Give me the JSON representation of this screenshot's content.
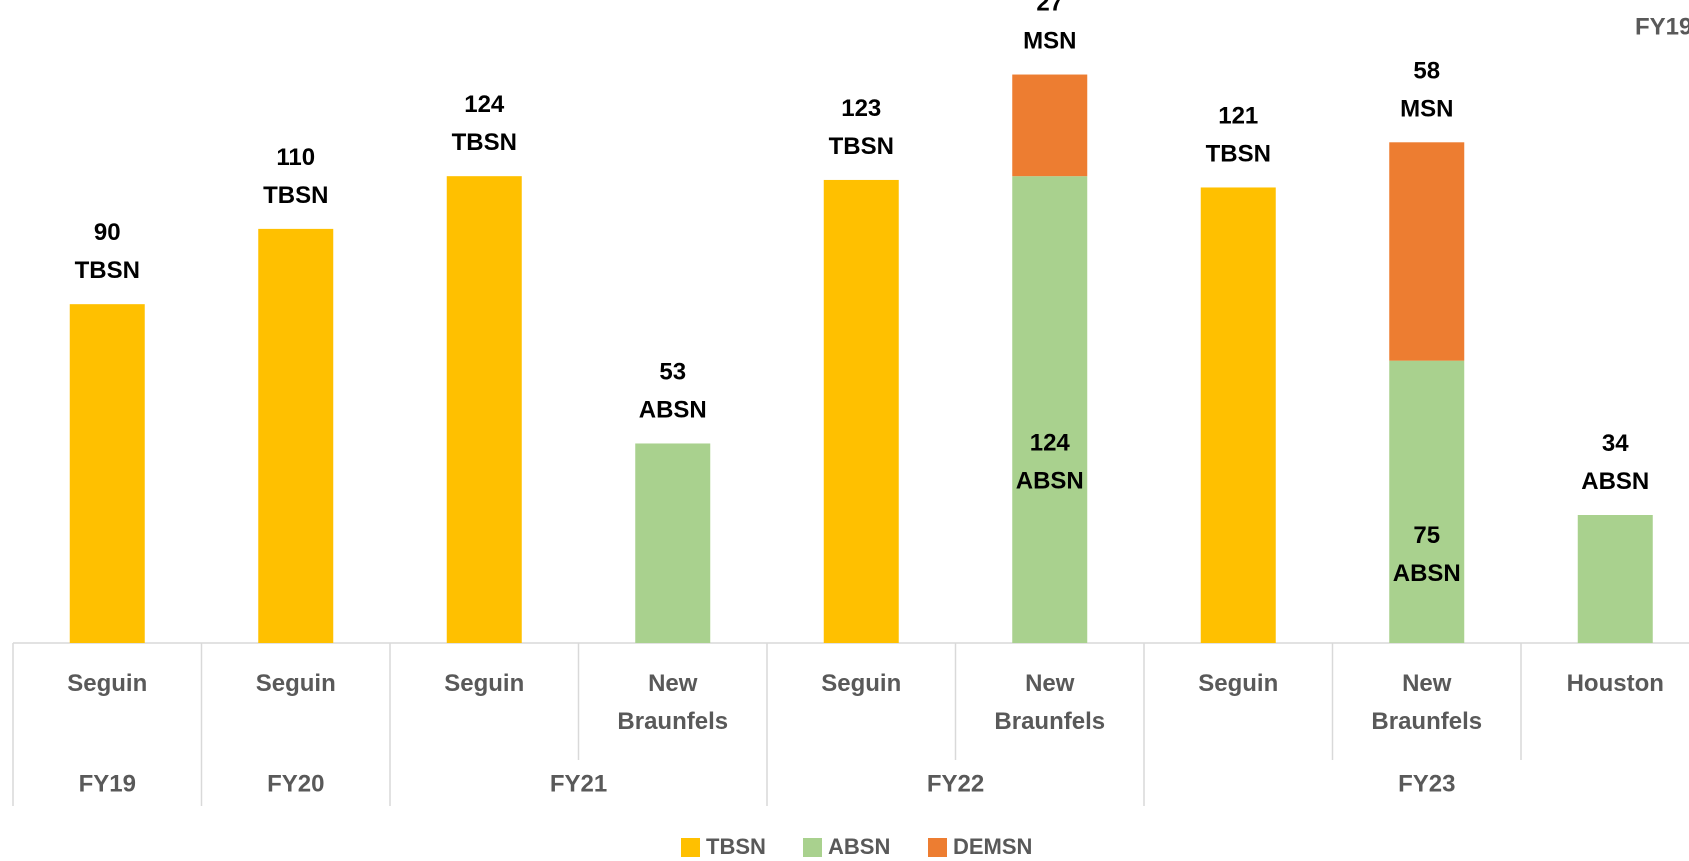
{
  "chart_data": {
    "type": "stacked_bar",
    "annotation": "FY19",
    "groups": [
      {
        "label": "FY19",
        "categories": [
          "Seguin"
        ]
      },
      {
        "label": "FY20",
        "categories": [
          "Seguin"
        ]
      },
      {
        "label": "FY21",
        "categories": [
          "Seguin",
          "New Braunfels"
        ]
      },
      {
        "label": "FY22",
        "categories": [
          "Seguin",
          "New Braunfels"
        ]
      },
      {
        "label": "FY23",
        "categories": [
          "Seguin",
          "New Braunfels",
          "Houston"
        ]
      }
    ],
    "series": [
      {
        "name": "TBSN",
        "color": "#FFC000",
        "values": [
          90,
          110,
          124,
          null,
          123,
          null,
          121,
          null,
          null
        ],
        "value_labels": [
          "90 TBSN",
          "110 TBSN",
          "124 TBSN",
          null,
          "123 TBSN",
          null,
          "121 TBSN",
          null,
          null
        ]
      },
      {
        "name": "ABSN",
        "color": "#A9D18E",
        "values": [
          null,
          null,
          null,
          53,
          null,
          124,
          null,
          75,
          34
        ],
        "value_labels": [
          null,
          null,
          null,
          "53 ABSN",
          null,
          "124 ABSN",
          null,
          "75 ABSN",
          "34 ABSN"
        ]
      },
      {
        "name": "DEMSN",
        "color": "#ED7D31",
        "values": [
          null,
          null,
          null,
          null,
          null,
          27,
          null,
          58,
          null
        ],
        "value_labels": [
          null,
          null,
          null,
          null,
          null,
          "27 MSN",
          null,
          "58 MSN",
          null
        ]
      }
    ],
    "ylim": [
      0,
      170
    ]
  }
}
